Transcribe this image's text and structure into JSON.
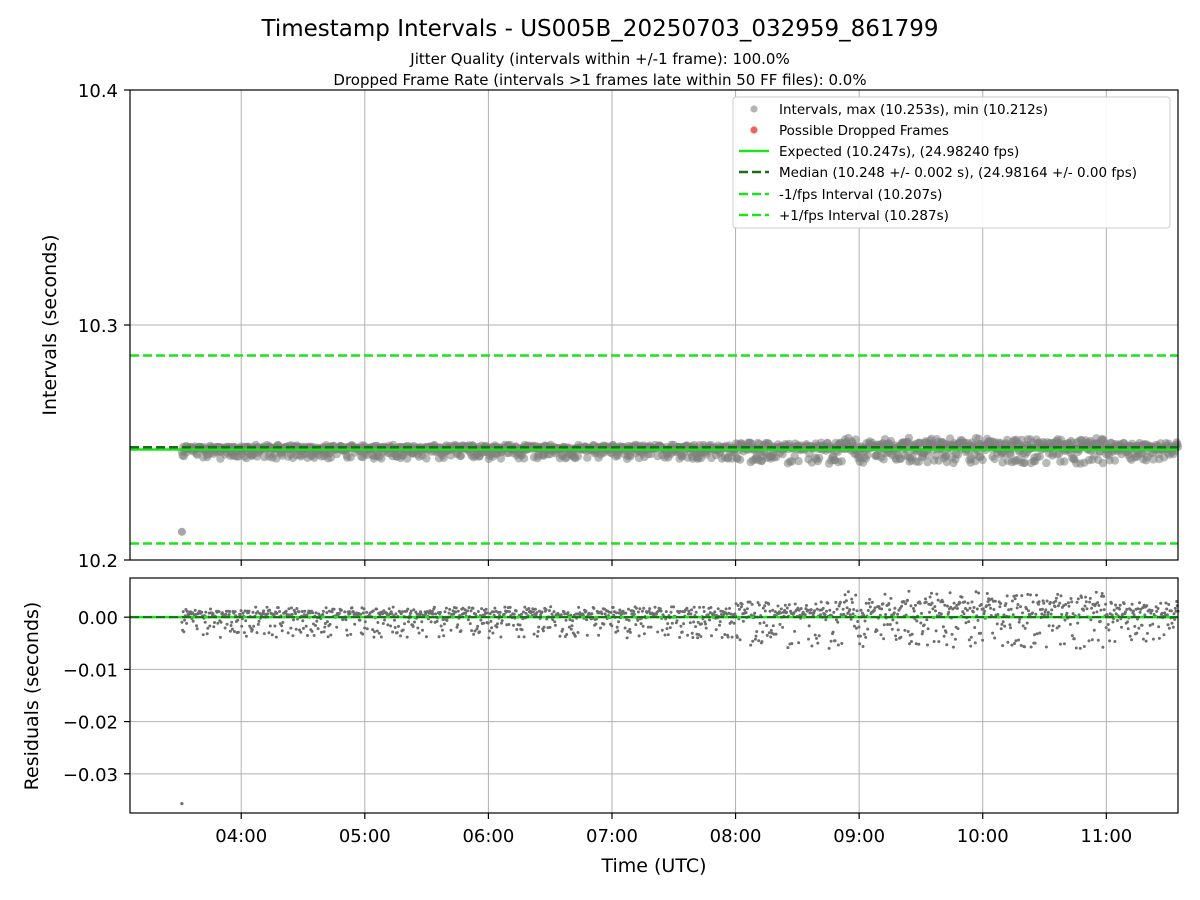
{
  "chart_data": {
    "type": "scatter",
    "title": "Timestamp Intervals - US005B_20250703_032959_861799",
    "subtitle_lines": [
      "Jitter Quality (intervals within +/-1 frame): 100.0%",
      "Dropped Frame Rate (intervals >1 frames late within 50 FF files): 0.0%"
    ],
    "xlabel": "Time (UTC)",
    "x_ticks": [
      "04:00",
      "05:00",
      "06:00",
      "07:00",
      "08:00",
      "09:00",
      "10:00",
      "11:00"
    ],
    "x_tick_hours": [
      4,
      5,
      6,
      7,
      8,
      9,
      10,
      11
    ],
    "x_range_hours": [
      3.1,
      11.58
    ],
    "grid": true,
    "legend_position": "upper right",
    "colors": {
      "intervals": "#808080",
      "dropped": "#e84a4a",
      "expected": "#1de31d",
      "median": "#1a6e1a",
      "bounds": "#1de31d",
      "grid": "#b0b0b0"
    },
    "main": {
      "ylabel": "Intervals (seconds)",
      "ylim": [
        10.2,
        10.4
      ],
      "y_ticks": [
        "10.2",
        "10.3",
        "10.4"
      ],
      "y_tick_values": [
        10.2,
        10.3,
        10.4
      ],
      "series": [
        {
          "name": "Intervals, max (10.253s), min (10.212s)",
          "kind": "scatter",
          "max": 10.253,
          "min": 10.212,
          "start_hour": 3.52,
          "end_hour": 11.58
        },
        {
          "name": "Possible Dropped Frames",
          "kind": "scatter",
          "count": 0
        },
        {
          "name": "Expected (10.247s), (24.98240 fps)",
          "kind": "hline",
          "y": 10.247
        },
        {
          "name": "Median (10.248 +/- 0.002 s), (24.98164 +/- 0.00 fps)",
          "kind": "hline-dashed",
          "y": 10.248
        },
        {
          "name": "-1/fps Interval (10.207s)",
          "kind": "hline-dashed",
          "y": 10.207
        },
        {
          "name": "+1/fps Interval (10.287s)",
          "kind": "hline-dashed",
          "y": 10.287
        }
      ],
      "outlier": {
        "hour": 3.52,
        "value": 10.212
      }
    },
    "residuals": {
      "ylabel": "Residuals (seconds)",
      "ylim": [
        -0.0375,
        0.0075
      ],
      "y_ticks": [
        "0.00",
        "−0.01",
        "−0.02",
        "−0.03"
      ],
      "y_tick_values": [
        0.0,
        -0.01,
        -0.02,
        -0.03
      ],
      "outlier": {
        "hour": 3.52,
        "value": -0.0357
      },
      "spread_by_period": [
        {
          "from_hour": 3.52,
          "to_hour": 8.0,
          "up": 0.002,
          "down": -0.004
        },
        {
          "from_hour": 8.0,
          "to_hour": 8.8,
          "up": 0.003,
          "down": -0.006
        },
        {
          "from_hour": 8.8,
          "to_hour": 11.0,
          "up": 0.005,
          "down": -0.006
        },
        {
          "from_hour": 11.0,
          "to_hour": 11.58,
          "up": 0.003,
          "down": -0.005
        }
      ]
    }
  }
}
